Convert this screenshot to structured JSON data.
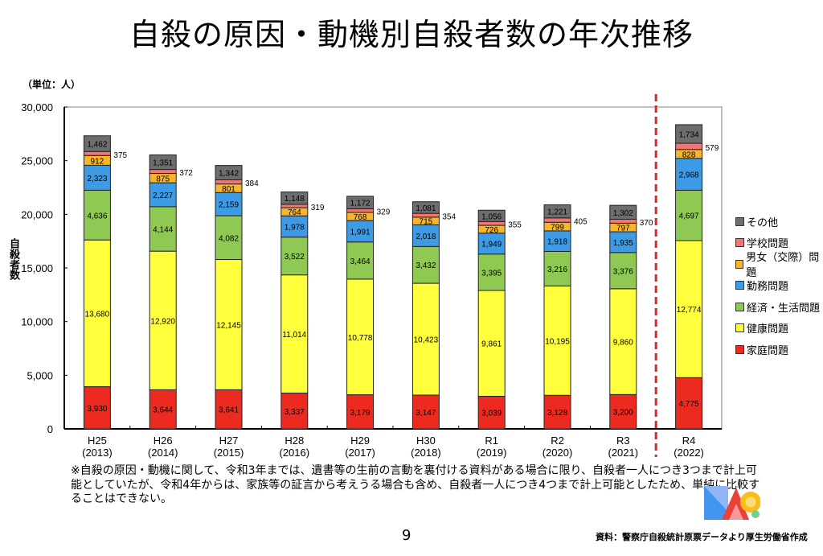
{
  "title": "自殺の原因・動機別自殺者数の年次推移",
  "unit_label": "（単位：人）",
  "note": "※自殺の原因・動機に関して、令和3年までは、遺書等の生前の言動を裏付ける資料がある場合に限り、自殺者一人につき3つまで計上可能としていたが、令和4年からは、家族等の証言から考えうる場合も含め、自殺者一人につき4つまで計上可能としたため、単純に比較することはできない。",
  "page_number": "9",
  "source": "資料：警察庁自殺統計原票データより厚生労働省作成",
  "chart_data": {
    "type": "bar",
    "stacked": true,
    "title": "自殺の原因・動機別自殺者数の年次推移",
    "xlabel": "",
    "ylabel": "自殺者数",
    "ylim": [
      0,
      30000
    ],
    "yticks": [
      0,
      5000,
      10000,
      15000,
      20000,
      25000,
      30000
    ],
    "ytick_labels": [
      "0",
      "5,000",
      "10,000",
      "15,000",
      "20,000",
      "25,000",
      "30,000"
    ],
    "grid": false,
    "legend_position": "right",
    "categories": [
      "H25",
      "H26",
      "H27",
      "H28",
      "H29",
      "H30",
      "R1",
      "R2",
      "R3",
      "R4"
    ],
    "category_years": [
      "(2013)",
      "(2014)",
      "(2015)",
      "(2016)",
      "(2017)",
      "(2018)",
      "(2019)",
      "(2020)",
      "(2021)",
      "(2022)"
    ],
    "divider_before_category": "R4",
    "divider_color": "#e8231f",
    "series": [
      {
        "name": "家庭問題",
        "color": "#ec2a20",
        "values": [
          3930,
          3644,
          3641,
          3337,
          3179,
          3147,
          3039,
          3128,
          3200,
          4775
        ]
      },
      {
        "name": "健康問題",
        "color": "#ffff3c",
        "values": [
          13680,
          12920,
          12145,
          11014,
          10778,
          10423,
          9861,
          10195,
          9860,
          12774
        ]
      },
      {
        "name": "経済・生活問題",
        "color": "#8fc953",
        "values": [
          4636,
          4144,
          4082,
          3522,
          3464,
          3432,
          3395,
          3216,
          3376,
          4697
        ]
      },
      {
        "name": "勤務問題",
        "color": "#3d9be5",
        "values": [
          2323,
          2227,
          2159,
          1978,
          1991,
          2018,
          1949,
          1918,
          1935,
          2968
        ]
      },
      {
        "name": "男女（交際）問題",
        "color": "#f7b52c",
        "values": [
          912,
          875,
          801,
          764,
          768,
          715,
          726,
          799,
          797,
          828
        ]
      },
      {
        "name": "学校問題",
        "color": "#f27474",
        "values": [
          375,
          372,
          384,
          319,
          329,
          354,
          355,
          405,
          370,
          579
        ]
      },
      {
        "name": "その他",
        "color": "#6d6d6d",
        "values": [
          1462,
          1351,
          1342,
          1148,
          1172,
          1081,
          1056,
          1221,
          1302,
          1734
        ]
      }
    ],
    "legend_order": [
      "その他",
      "学校問題",
      "男女（交際）問題",
      "勤務問題",
      "経済・生活問題",
      "健康問題",
      "家庭問題"
    ]
  }
}
